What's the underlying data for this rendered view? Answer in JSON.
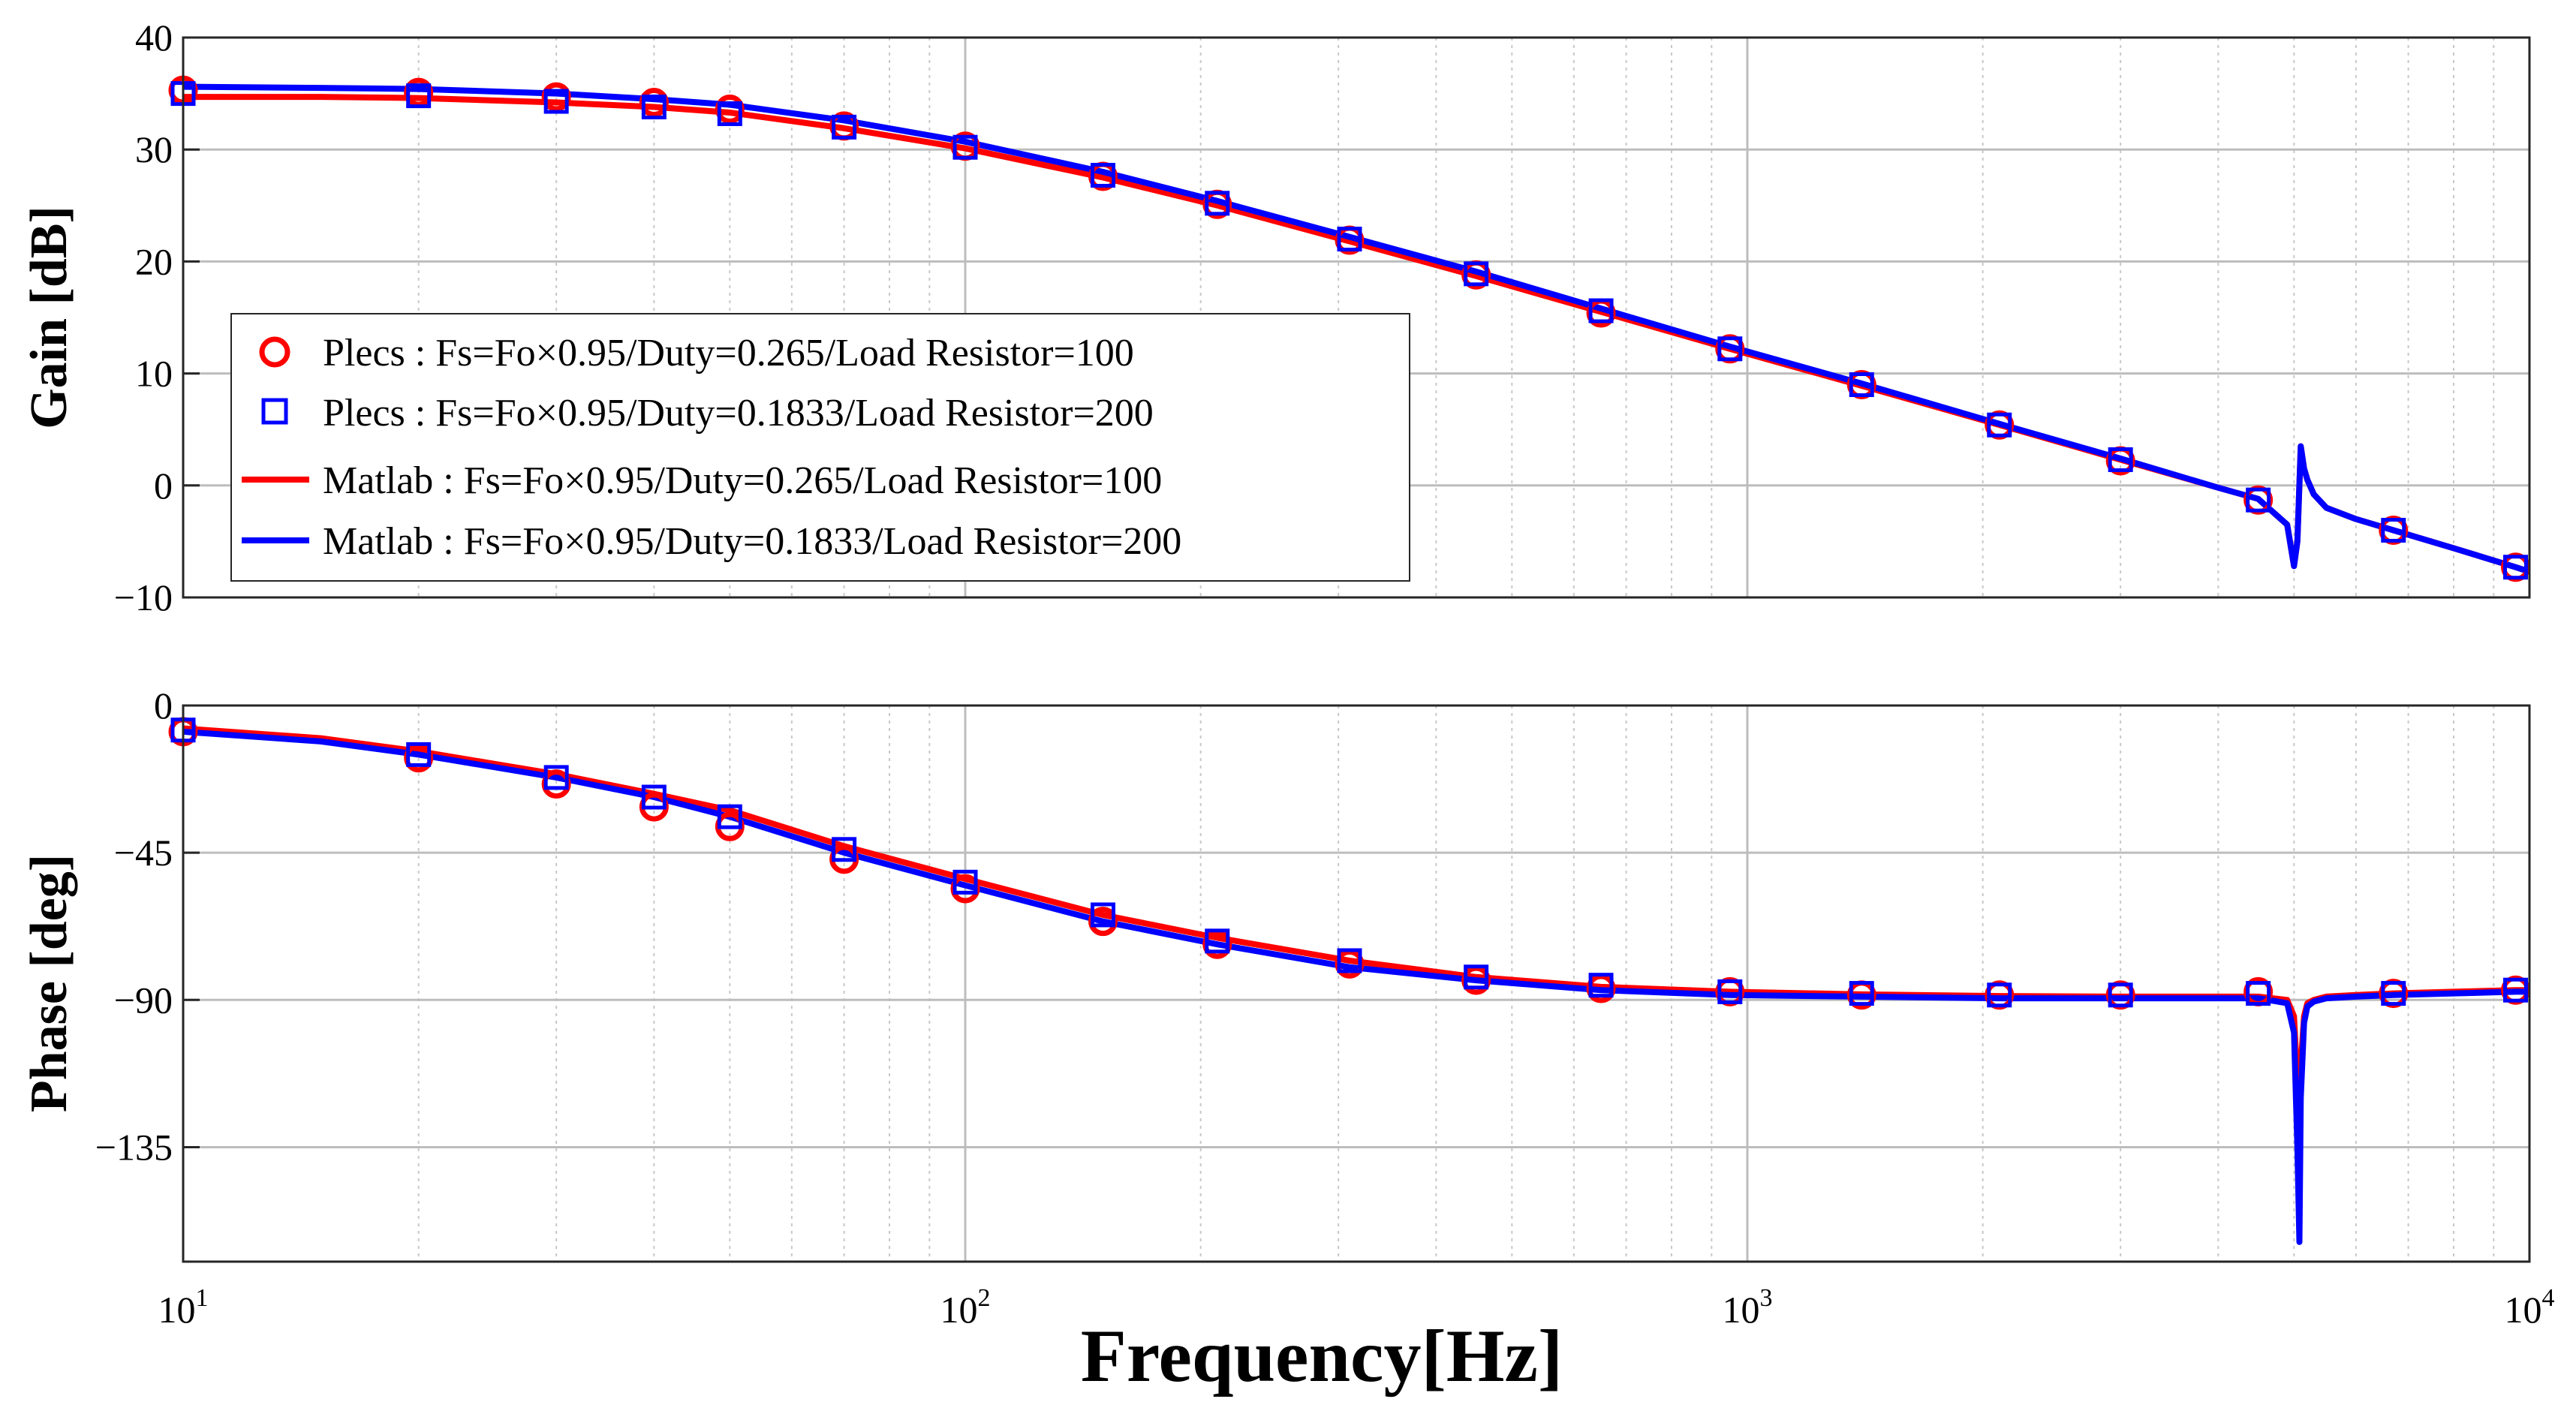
{
  "chart_data": {
    "type": "line",
    "x_scale": "log",
    "xlabel": "Frequency[Hz]",
    "xlim": [
      10,
      10000
    ],
    "x_ticks": [
      {
        "base": "10",
        "exp": "1"
      },
      {
        "base": "10",
        "exp": "2"
      },
      {
        "base": "10",
        "exp": "3"
      },
      {
        "base": "10",
        "exp": "4"
      }
    ],
    "grid": true,
    "colors": {
      "plecs_100": "#ff0000",
      "plecs_200": "#0000ff",
      "matlab_100": "#ff0000",
      "matlab_200": "#0000ff"
    },
    "legend": {
      "placement": "left",
      "entries": [
        {
          "label": "Plecs : Fs=Fo×0.95/Duty=0.265/Load Resistor=100",
          "marker": "circle",
          "color": "#ff0000"
        },
        {
          "label": "Plecs : Fs=Fo×0.95/Duty=0.1833/Load Resistor=200",
          "marker": "square",
          "color": "#0000ff"
        },
        {
          "label": "Matlab : Fs=Fo×0.95/Duty=0.265/Load Resistor=100",
          "marker": "line",
          "color": "#ff0000"
        },
        {
          "label": "Matlab : Fs=Fo×0.95/Duty=0.1833/Load Resistor=200",
          "marker": "line",
          "color": "#0000ff"
        }
      ]
    },
    "panels": [
      {
        "name": "gain",
        "ylabel": "Gain [dB]",
        "ylim": [
          -10,
          40
        ],
        "yticks": [
          "−10",
          "0",
          "10",
          "20",
          "30",
          "40"
        ],
        "ytick_values": [
          -10,
          0,
          10,
          20,
          30,
          40
        ],
        "series": [
          {
            "name": "Matlab : Fs=Fo×0.95/Duty=0.265/Load Resistor=100",
            "kind": "line",
            "color": "#ff0000",
            "x": [
              10,
              15,
              20,
              30,
              40,
              50,
              70,
              100,
              150,
              210,
              310,
              450,
              650,
              950,
              1400,
              2100,
              3000,
              4000,
              4500,
              4900,
              5000,
              5050,
              5100,
              5150,
              5200,
              5300,
              5500,
              6000,
              6700,
              8000,
              9600,
              10000
            ],
            "y": [
              34.7,
              34.7,
              34.6,
              34.2,
              33.8,
              33.3,
              31.9,
              30.1,
              27.5,
              25.0,
              21.8,
              18.7,
              15.5,
              12.2,
              8.9,
              5.4,
              2.3,
              -0.2,
              -1.2,
              -3.5,
              -7.2,
              -5.0,
              3.5,
              1.5,
              0.5,
              -0.8,
              -2.0,
              -3.0,
              -4.0,
              -5.6,
              -7.3,
              -7.7
            ]
          },
          {
            "name": "Matlab : Fs=Fo×0.95/Duty=0.1833/Load Resistor=200",
            "kind": "line",
            "color": "#0000ff",
            "x": [
              10,
              15,
              20,
              30,
              40,
              50,
              70,
              100,
              150,
              210,
              310,
              450,
              650,
              950,
              1400,
              2100,
              3000,
              4000,
              4500,
              4900,
              5000,
              5050,
              5100,
              5150,
              5200,
              5300,
              5500,
              6000,
              6700,
              8000,
              9600,
              10000
            ],
            "y": [
              35.6,
              35.5,
              35.4,
              35.0,
              34.5,
              34.0,
              32.6,
              30.7,
              28.0,
              25.4,
              22.2,
              19.1,
              15.8,
              12.4,
              9.1,
              5.5,
              2.4,
              -0.2,
              -1.2,
              -3.5,
              -7.2,
              -5.0,
              3.5,
              1.5,
              0.5,
              -0.8,
              -2.0,
              -3.0,
              -4.0,
              -5.6,
              -7.3,
              -7.7
            ]
          },
          {
            "name": "Plecs : Fs=Fo×0.95/Duty=0.265/Load Resistor=100",
            "kind": "circle",
            "color": "#ff0000",
            "x": [
              10,
              20,
              30,
              40,
              50,
              70,
              100,
              150,
              210,
              310,
              450,
              650,
              950,
              1400,
              2100,
              3000,
              4500,
              6700,
              9600
            ],
            "y": [
              35.3,
              35.1,
              34.7,
              34.2,
              33.6,
              32.1,
              30.3,
              27.6,
              25.1,
              21.9,
              18.8,
              15.4,
              12.2,
              9.0,
              5.4,
              2.2,
              -1.3,
              -4.0,
              -7.3
            ]
          },
          {
            "name": "Plecs : Fs=Fo×0.95/Duty=0.1833/Load Resistor=200",
            "kind": "square",
            "color": "#0000ff",
            "x": [
              10,
              20,
              30,
              40,
              50,
              70,
              100,
              150,
              210,
              310,
              450,
              650,
              950,
              1400,
              2100,
              3000,
              4500,
              6700,
              9600
            ],
            "y": [
              35.0,
              34.8,
              34.3,
              33.8,
              33.2,
              32.0,
              30.2,
              27.7,
              25.2,
              22.0,
              18.9,
              15.6,
              12.2,
              9.0,
              5.4,
              2.3,
              -1.3,
              -4.0,
              -7.3
            ]
          }
        ]
      },
      {
        "name": "phase",
        "ylabel": "Phase [deg]",
        "ylim": [
          -170,
          0
        ],
        "yticks": [
          "0",
          "−45",
          "−90",
          "−135"
        ],
        "ytick_values": [
          0,
          -45,
          -90,
          -135
        ],
        "series": [
          {
            "name": "Matlab : Fs=Fo×0.95/Duty=0.265/Load Resistor=100",
            "kind": "line",
            "color": "#ff0000",
            "x": [
              10,
              15,
              20,
              30,
              40,
              50,
              70,
              100,
              150,
              210,
              310,
              450,
              650,
              950,
              1400,
              2100,
              3000,
              4000,
              4500,
              4900,
              5000,
              5050,
              5080,
              5100,
              5150,
              5200,
              5300,
              5500,
              6000,
              6700,
              8000,
              9600,
              10000
            ],
            "y": [
              -7,
              -10,
              -14,
              -21,
              -27,
              -32,
              -43,
              -53,
              -64,
              -71,
              -78,
              -83,
              -86,
              -87.5,
              -88.3,
              -88.8,
              -89,
              -89,
              -89,
              -90,
              -95,
              -115,
              -140,
              -110,
              -95,
              -91,
              -90,
              -89,
              -88.5,
              -88,
              -87.5,
              -87,
              -87
            ]
          },
          {
            "name": "Matlab : Fs=Fo×0.95/Duty=0.1833/Load Resistor=200",
            "kind": "line",
            "color": "#0000ff",
            "x": [
              10,
              15,
              20,
              30,
              40,
              50,
              70,
              100,
              150,
              210,
              310,
              450,
              650,
              950,
              1400,
              2100,
              3000,
              4000,
              4500,
              4900,
              5000,
              5050,
              5080,
              5100,
              5150,
              5200,
              5300,
              5500,
              6000,
              6700,
              8000,
              9600,
              10000
            ],
            "y": [
              -8,
              -11,
              -15,
              -22,
              -28,
              -34,
              -45,
              -55,
              -66,
              -73,
              -80,
              -84,
              -87,
              -88.5,
              -89,
              -89.5,
              -89.5,
              -89.5,
              -89.5,
              -91,
              -100,
              -135,
              -164,
              -120,
              -97,
              -92,
              -90.5,
              -89.5,
              -89,
              -88.5,
              -88,
              -87.5,
              -87.5
            ]
          },
          {
            "name": "Plecs : Fs=Fo×0.95/Duty=0.265/Load Resistor=100",
            "kind": "circle",
            "color": "#ff0000",
            "x": [
              10,
              20,
              30,
              40,
              50,
              70,
              100,
              150,
              210,
              310,
              450,
              650,
              950,
              1400,
              2100,
              3000,
              4500,
              6700,
              9600
            ],
            "y": [
              -8,
              -16,
              -24,
              -31,
              -37,
              -47,
              -56,
              -66,
              -73,
              -79,
              -84,
              -86.5,
              -87.5,
              -88.5,
              -88.5,
              -88.5,
              -87.5,
              -88,
              -87
            ]
          },
          {
            "name": "Plecs : Fs=Fo×0.95/Duty=0.1833/Load Resistor=200",
            "kind": "square",
            "color": "#0000ff",
            "x": [
              10,
              20,
              30,
              40,
              50,
              70,
              100,
              150,
              210,
              310,
              450,
              650,
              950,
              1400,
              2100,
              3000,
              4500,
              6700,
              9600
            ],
            "y": [
              -7.5,
              -15,
              -22,
              -28,
              -34,
              -44,
              -54,
              -64,
              -72,
              -78,
              -83,
              -85.5,
              -87.5,
              -88,
              -88.5,
              -88.5,
              -88,
              -88,
              -87
            ]
          }
        ]
      }
    ]
  }
}
